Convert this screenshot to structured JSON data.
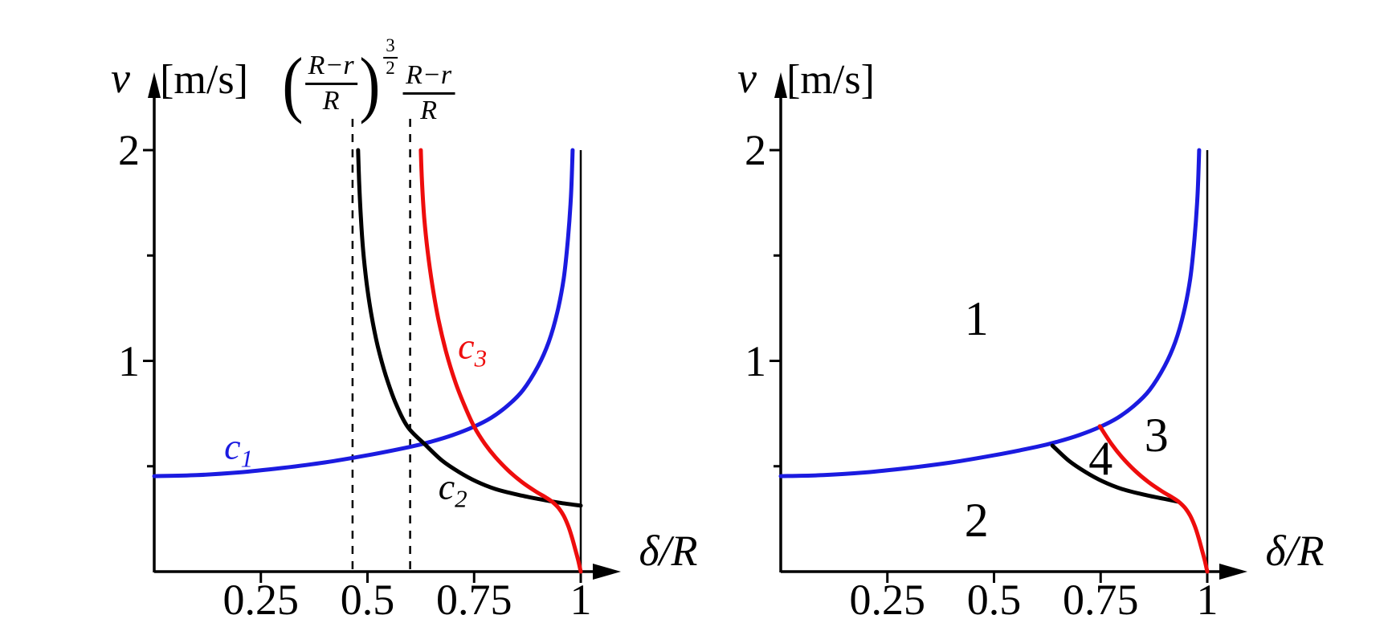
{
  "figure": {
    "background": "#ffffff",
    "colors": {
      "blue": "#1b1be0",
      "black": "#000000",
      "red": "#ee0d0d",
      "axis": "#000000"
    }
  },
  "chart_data": [
    {
      "type": "line",
      "panel": "left-curves",
      "xlabel": "δ/R",
      "ylabel": "v",
      "ylabel_units": "[m/s]",
      "xlim": [
        0,
        1.09
      ],
      "ylim": [
        0,
        2.35
      ],
      "grid": false,
      "x_ticks": [
        {
          "value": 0.25,
          "label": "0.25"
        },
        {
          "value": 0.5,
          "label": "0.5"
        },
        {
          "value": 0.75,
          "label": "0.75"
        },
        {
          "value": 1,
          "label": "1"
        }
      ],
      "y_ticks_major": [
        {
          "value": 1,
          "label": "1"
        },
        {
          "value": 2,
          "label": "2"
        }
      ],
      "y_ticks_minor": [
        0.5,
        1.5
      ],
      "boundary_line_x": 1,
      "dashed_guides": [
        {
          "x": 0.465,
          "label": {
            "wrapped": true,
            "num": "R−r",
            "den": "R",
            "exp_num": "3",
            "exp_den": "2"
          }
        },
        {
          "x": 0.6,
          "label": {
            "wrapped": false,
            "num": "R−r",
            "den": "R"
          }
        }
      ],
      "series": [
        {
          "name": "c1",
          "color_key": "blue",
          "label": {
            "base": "c",
            "sub": "1"
          },
          "label_pos": [
            0.198,
            0.579
          ],
          "points": [
            [
              0,
              0.453
            ],
            [
              0.1,
              0.458
            ],
            [
              0.2,
              0.471
            ],
            [
              0.3,
              0.492
            ],
            [
              0.4,
              0.518
            ],
            [
              0.5,
              0.552
            ],
            [
              0.6,
              0.592
            ],
            [
              0.65,
              0.617
            ],
            [
              0.7,
              0.648
            ],
            [
              0.75,
              0.688
            ],
            [
              0.79,
              0.73
            ],
            [
              0.83,
              0.79
            ],
            [
              0.865,
              0.862
            ],
            [
              0.9,
              0.975
            ],
            [
              0.925,
              1.09
            ],
            [
              0.945,
              1.23
            ],
            [
              0.96,
              1.39
            ],
            [
              0.97,
              1.58
            ],
            [
              0.977,
              1.78
            ],
            [
              0.981,
              2.0
            ]
          ]
        },
        {
          "name": "c2",
          "color_key": "black",
          "label": {
            "base": "c",
            "sub": "2"
          },
          "label_pos": [
            0.7,
            0.389
          ],
          "points": [
            [
              0.478,
              2.0
            ],
            [
              0.4805,
              1.85
            ],
            [
              0.4845,
              1.68
            ],
            [
              0.49,
              1.52
            ],
            [
              0.498,
              1.37
            ],
            [
              0.509,
              1.22
            ],
            [
              0.524,
              1.07
            ],
            [
              0.543,
              0.93
            ],
            [
              0.566,
              0.8
            ],
            [
              0.595,
              0.685
            ],
            [
              0.635,
              0.603
            ],
            [
              0.675,
              0.527
            ],
            [
              0.715,
              0.472
            ],
            [
              0.755,
              0.428
            ],
            [
              0.8,
              0.392
            ],
            [
              0.85,
              0.366
            ],
            [
              0.9,
              0.345
            ],
            [
              0.95,
              0.327
            ],
            [
              1.0,
              0.313
            ]
          ]
        },
        {
          "name": "c3",
          "color_key": "red",
          "label": {
            "base": "c",
            "sub": "3"
          },
          "label_pos": [
            0.746,
            1.055
          ],
          "points": [
            [
              0.625,
              2.0
            ],
            [
              0.628,
              1.84
            ],
            [
              0.633,
              1.68
            ],
            [
              0.641,
              1.52
            ],
            [
              0.652,
              1.36
            ],
            [
              0.666,
              1.2
            ],
            [
              0.684,
              1.045
            ],
            [
              0.705,
              0.905
            ],
            [
              0.728,
              0.785
            ],
            [
              0.75,
              0.688
            ],
            [
              0.775,
              0.607
            ],
            [
              0.8,
              0.543
            ],
            [
              0.83,
              0.48
            ],
            [
              0.862,
              0.425
            ],
            [
              0.893,
              0.382
            ],
            [
              0.918,
              0.352
            ],
            [
              0.934,
              0.33
            ],
            [
              0.948,
              0.302
            ],
            [
              0.96,
              0.265
            ],
            [
              0.971,
              0.215
            ],
            [
              0.98,
              0.158
            ],
            [
              0.988,
              0.1
            ],
            [
              0.9945,
              0.05
            ],
            [
              1.0,
              0.0
            ]
          ]
        }
      ],
      "region_labels": []
    },
    {
      "type": "line",
      "panel": "right-regions",
      "xlabel": "δ/R",
      "ylabel": "v",
      "ylabel_units": "[m/s]",
      "xlim": [
        0,
        1.09
      ],
      "ylim": [
        0,
        2.35
      ],
      "grid": false,
      "x_ticks": [
        {
          "value": 0.25,
          "label": "0.25"
        },
        {
          "value": 0.5,
          "label": "0.5"
        },
        {
          "value": 0.75,
          "label": "0.75"
        },
        {
          "value": 1,
          "label": "1"
        }
      ],
      "y_ticks_major": [
        {
          "value": 1,
          "label": "1"
        },
        {
          "value": 2,
          "label": "2"
        }
      ],
      "y_ticks_minor": [
        0.5,
        1.5
      ],
      "boundary_line_x": 1,
      "dashed_guides": [],
      "series": [
        {
          "name": "blue-boundary",
          "color_key": "blue",
          "points": [
            [
              0,
              0.453
            ],
            [
              0.1,
              0.458
            ],
            [
              0.2,
              0.471
            ],
            [
              0.3,
              0.492
            ],
            [
              0.4,
              0.518
            ],
            [
              0.5,
              0.552
            ],
            [
              0.6,
              0.592
            ],
            [
              0.65,
              0.617
            ],
            [
              0.7,
              0.648
            ],
            [
              0.75,
              0.688
            ],
            [
              0.79,
              0.73
            ],
            [
              0.83,
              0.79
            ],
            [
              0.865,
              0.862
            ],
            [
              0.9,
              0.975
            ],
            [
              0.925,
              1.09
            ],
            [
              0.945,
              1.23
            ],
            [
              0.96,
              1.39
            ],
            [
              0.97,
              1.58
            ],
            [
              0.977,
              1.78
            ],
            [
              0.981,
              2.0
            ]
          ]
        },
        {
          "name": "black-boundary",
          "color_key": "black",
          "points": [
            [
              0.637,
              0.598
            ],
            [
              0.675,
              0.527
            ],
            [
              0.715,
              0.472
            ],
            [
              0.755,
              0.428
            ],
            [
              0.8,
              0.392
            ],
            [
              0.85,
              0.366
            ],
            [
              0.9,
              0.345
            ],
            [
              0.932,
              0.332
            ]
          ]
        },
        {
          "name": "red-boundary",
          "color_key": "red",
          "points": [
            [
              0.748,
              0.69
            ],
            [
              0.775,
              0.607
            ],
            [
              0.8,
              0.543
            ],
            [
              0.83,
              0.48
            ],
            [
              0.862,
              0.425
            ],
            [
              0.893,
              0.382
            ],
            [
              0.918,
              0.352
            ],
            [
              0.934,
              0.33
            ],
            [
              0.948,
              0.302
            ],
            [
              0.96,
              0.265
            ],
            [
              0.971,
              0.215
            ],
            [
              0.98,
              0.158
            ],
            [
              0.988,
              0.1
            ],
            [
              0.9945,
              0.05
            ],
            [
              1.0,
              0.0
            ]
          ]
        }
      ],
      "region_labels": [
        {
          "text": "1",
          "pos": [
            0.459,
            1.2
          ]
        },
        {
          "text": "2",
          "pos": [
            0.459,
            0.244
          ]
        },
        {
          "text": "3",
          "pos": [
            0.881,
            0.648
          ]
        },
        {
          "text": "4",
          "pos": [
            0.75,
            0.537
          ]
        }
      ]
    }
  ]
}
